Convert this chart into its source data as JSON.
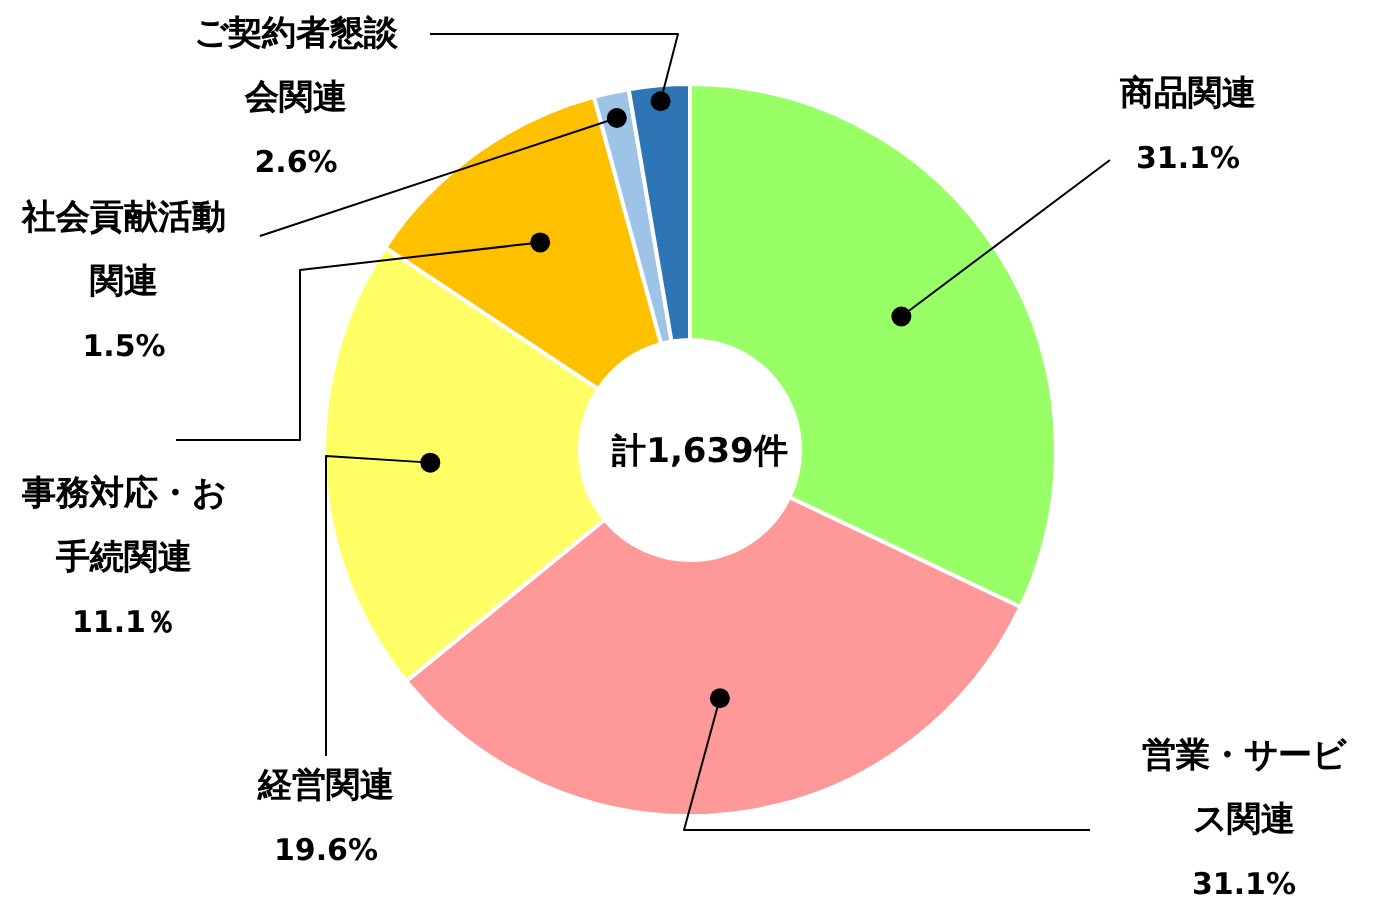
{
  "chart_data": {
    "type": "donut",
    "categories": [
      "商品関連",
      "営業・サービス関連",
      "経営関連",
      "事務対応・お手続関連",
      "社会貢献活動関連",
      "ご契約者懇談会関連"
    ],
    "values": [
      31.1,
      31.1,
      19.6,
      11.1,
      1.5,
      2.6
    ],
    "value_labels": [
      "31.1%",
      "31.1%",
      "19.6%",
      "11.1％",
      "1.5%",
      "2.6%"
    ],
    "colors": [
      "#99ff66",
      "#ff9999",
      "#ffff66",
      "#ffc000",
      "#9dc3e6",
      "#2e75b6"
    ],
    "annotations": [
      "計1,639件"
    ],
    "legend": false
  }
}
